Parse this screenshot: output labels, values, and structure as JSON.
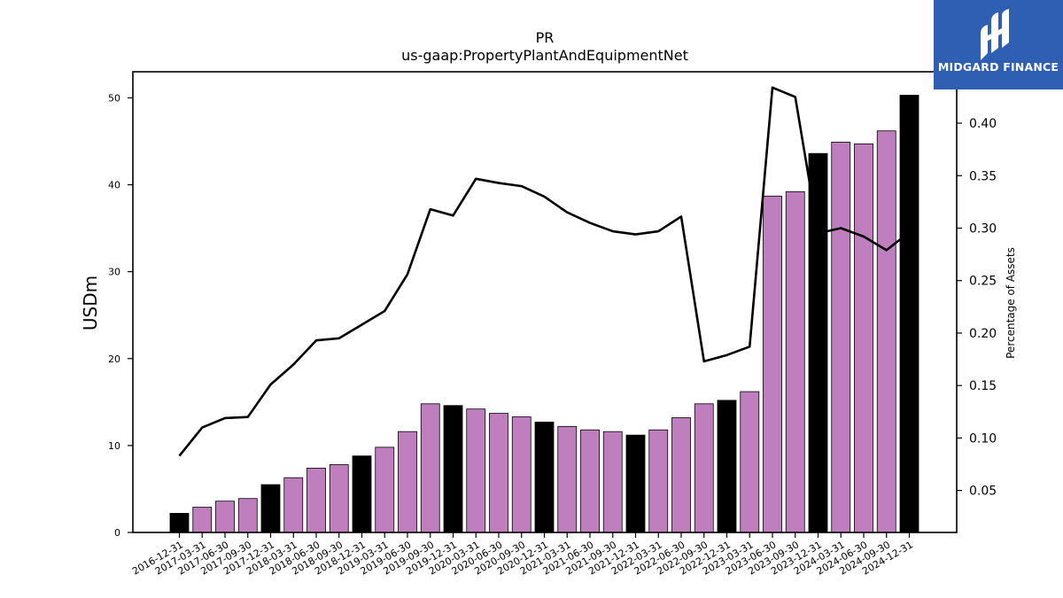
{
  "chart_data": {
    "type": "bar",
    "title": "PR",
    "subtitle": "us-gaap:PropertyPlantAndEquipmentNet",
    "ylabel": "USDm",
    "y2label": "Percentage of Assets",
    "ylim": [
      0,
      53
    ],
    "y2lim": [
      0.01,
      0.449
    ],
    "yticks": [
      0,
      10,
      20,
      30,
      40,
      50
    ],
    "y2ticks": [
      "0.05",
      "0.10",
      "0.15",
      "0.20",
      "0.25",
      "0.30",
      "0.35",
      "0.40"
    ],
    "categories": [
      "2016-12-31",
      "2017-03-31",
      "2017-06-30",
      "2017-09-30",
      "2017-12-31",
      "2018-03-31",
      "2018-06-30",
      "2018-09-30",
      "2018-12-31",
      "2019-03-31",
      "2019-06-30",
      "2019-09-30",
      "2019-12-31",
      "2020-03-31",
      "2020-06-30",
      "2020-09-30",
      "2020-12-31",
      "2021-03-31",
      "2021-06-30",
      "2021-09-30",
      "2021-12-31",
      "2022-03-31",
      "2022-06-30",
      "2022-09-30",
      "2022-12-31",
      "2023-03-31",
      "2023-06-30",
      "2023-09-30",
      "2023-12-31",
      "2024-03-31",
      "2024-06-30",
      "2024-09-30",
      "2024-12-31"
    ],
    "series": [
      {
        "values": [
          2.2,
          2.9,
          3.6,
          3.9,
          5.5,
          6.3,
          7.4,
          7.8,
          8.8,
          9.8,
          11.6,
          14.8,
          14.6,
          14.2,
          13.7,
          13.3,
          12.7,
          12.2,
          11.8,
          11.6,
          11.2,
          11.8,
          13.2,
          14.8,
          15.2,
          16.2,
          38.7,
          39.2,
          43.6,
          44.9,
          44.7,
          46.2,
          50.3
        ]
      },
      {
        "type": "line",
        "axis": "right",
        "values": [
          0.083,
          0.11,
          0.119,
          0.12,
          0.151,
          0.17,
          0.193,
          0.195,
          0.208,
          0.221,
          0.256,
          0.318,
          0.312,
          0.347,
          0.343,
          0.34,
          0.33,
          0.315,
          0.305,
          0.297,
          0.294,
          0.297,
          0.311,
          0.173,
          0.179,
          0.187,
          0.434,
          0.425,
          0.295,
          0.3,
          0.292,
          0.279,
          0.296
        ]
      }
    ],
    "colors": {
      "annual_bar": "#000000",
      "quarter_bar": "#bf7fbf",
      "line": "#000000",
      "axis": "#000000"
    }
  },
  "logo": {
    "text": "MIDGARD FINANCE",
    "background": "#2f5fb3"
  }
}
